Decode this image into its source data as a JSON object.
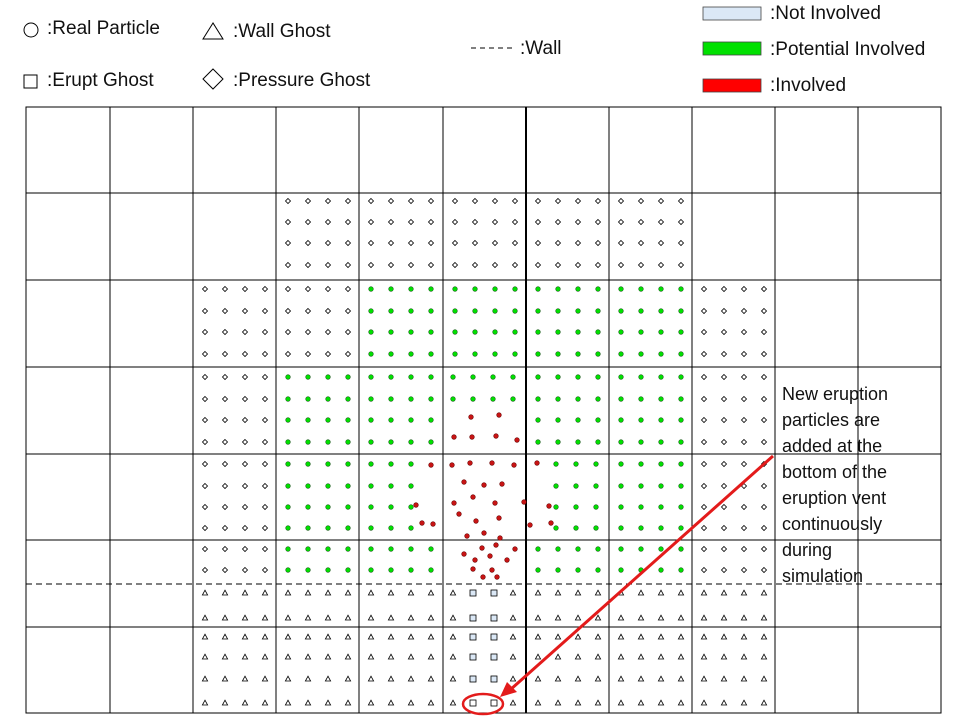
{
  "legend": {
    "real_particle": ":Real Particle",
    "wall_ghost": ":Wall Ghost",
    "erupt_ghost": ":Erupt Ghost",
    "pressure_ghost": ":Pressure Ghost",
    "wall": ":Wall",
    "not_involved": ":Not Involved",
    "potential_involved": ":Potential Involved",
    "involved": ":Involved"
  },
  "colors": {
    "not_involved": "#dbe8f6",
    "potential_involved": "#00e000",
    "involved": "#ff0000",
    "arrow": "#e31b1b",
    "grid": "#000000"
  },
  "annotation": {
    "lines": [
      "New eruption",
      "particles are",
      "added at the",
      "bottom of the",
      "eruption vent",
      "continuously",
      "during",
      "simulation"
    ]
  }
}
